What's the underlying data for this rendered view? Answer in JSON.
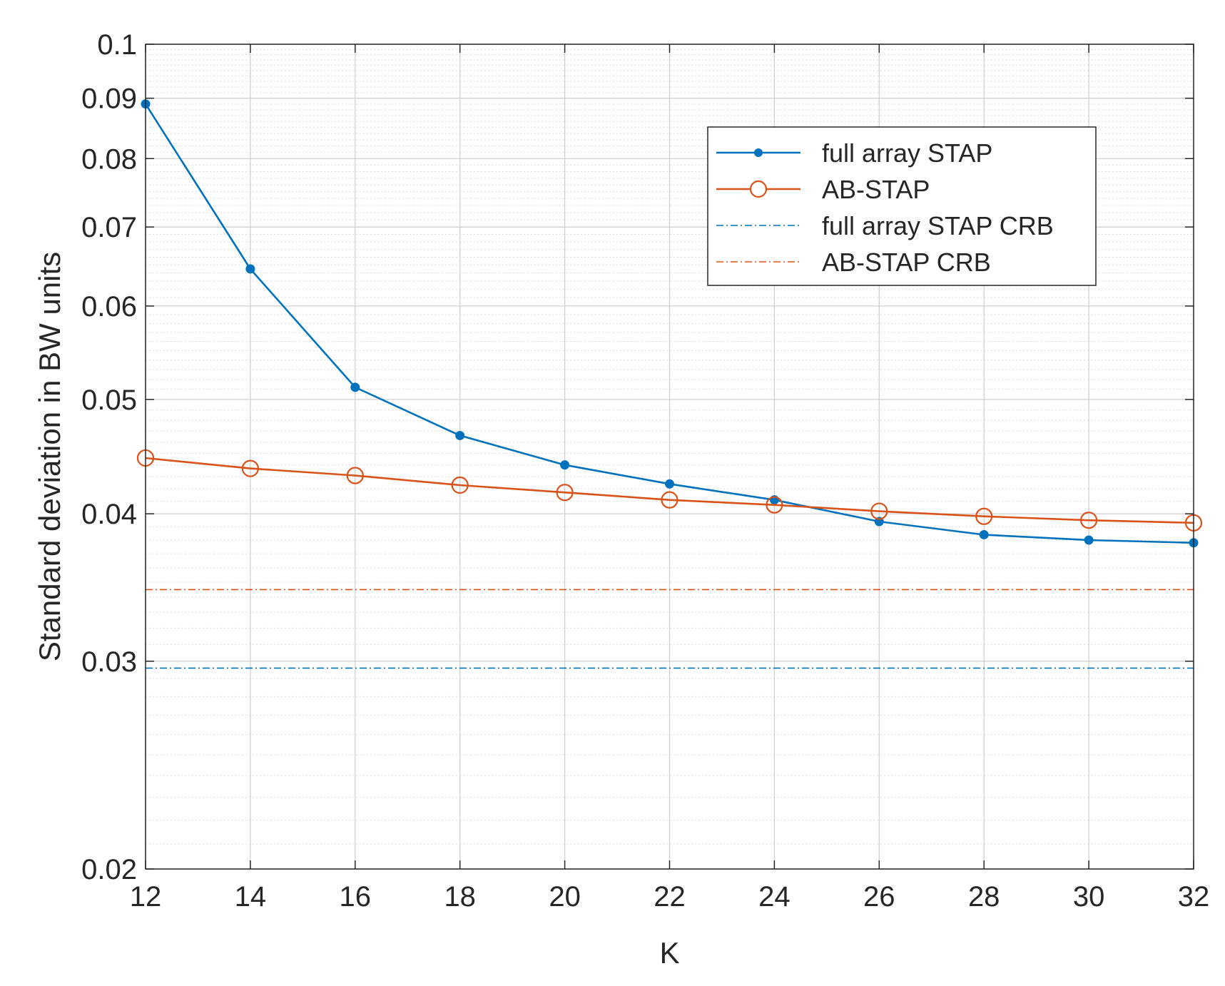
{
  "chart_data": {
    "type": "line",
    "title": "",
    "xlabel": "K",
    "ylabel": "Standard deviation in BW units",
    "yscale": "log",
    "xlim": [
      12,
      32
    ],
    "ylim": [
      0.02,
      0.1
    ],
    "grid": true,
    "legend_position": "top-right",
    "xticks": [
      12,
      14,
      16,
      18,
      20,
      22,
      24,
      26,
      28,
      30,
      32
    ],
    "xtick_labels": [
      "12",
      "14",
      "16",
      "18",
      "20",
      "22",
      "24",
      "26",
      "28",
      "30",
      "32"
    ],
    "yticks": [
      0.02,
      0.03,
      0.04,
      0.05,
      0.06,
      0.07,
      0.08,
      0.09,
      0.1
    ],
    "ytick_labels": [
      "0.02",
      "0.03",
      "0.04",
      "0.05",
      "0.06",
      "0.07",
      "0.08",
      "0.09",
      "0.1"
    ],
    "x": [
      12,
      14,
      16,
      18,
      20,
      22,
      24,
      26,
      28,
      30,
      32
    ],
    "series": [
      {
        "name": "full array STAP",
        "color": "#0072BD",
        "marker": "dot",
        "style": "solid",
        "values": [
          0.089,
          0.0645,
          0.0512,
          0.0466,
          0.044,
          0.0424,
          0.0411,
          0.0394,
          0.0384,
          0.038,
          0.0378
        ]
      },
      {
        "name": "AB-STAP",
        "color": "#D95319",
        "marker": "circle",
        "style": "solid",
        "values": [
          0.0446,
          0.0437,
          0.0431,
          0.0423,
          0.0417,
          0.0411,
          0.0407,
          0.0402,
          0.0398,
          0.0395,
          0.0393
        ]
      },
      {
        "name": "full array STAP CRB",
        "color": "#0072BD",
        "marker": "none",
        "style": "dashdot",
        "values": [
          0.0296,
          0.0296,
          0.0296,
          0.0296,
          0.0296,
          0.0296,
          0.0296,
          0.0296,
          0.0296,
          0.0296,
          0.0296
        ]
      },
      {
        "name": "AB-STAP CRB",
        "color": "#D95319",
        "marker": "none",
        "style": "dashdot",
        "values": [
          0.0345,
          0.0345,
          0.0345,
          0.0345,
          0.0345,
          0.0345,
          0.0345,
          0.0345,
          0.0345,
          0.0345,
          0.0345
        ]
      }
    ]
  }
}
